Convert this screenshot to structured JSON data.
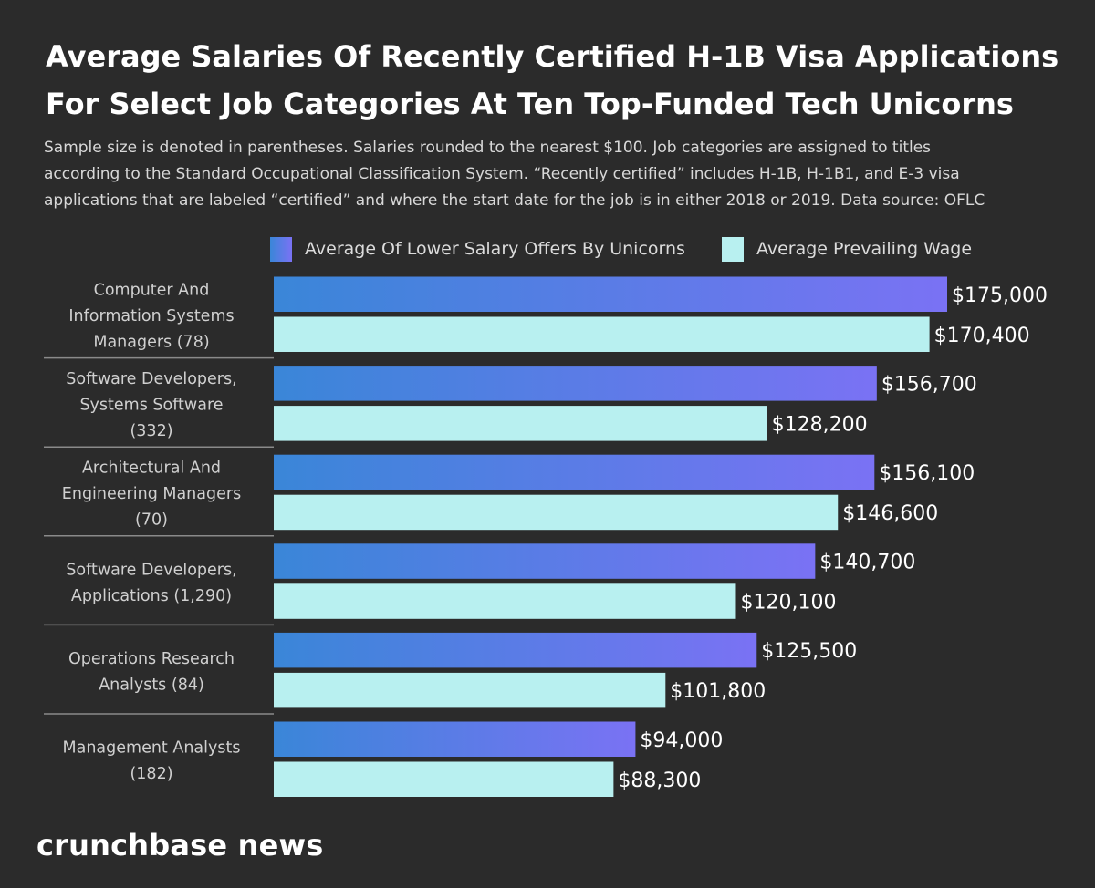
{
  "header": {
    "title_lines": [
      "Average Salaries Of Recently Certified H-1B Visa Applications",
      "For Select Job Categories At Ten Top-Funded Tech Unicorns"
    ],
    "subtitle_lines": [
      "Sample size is denoted in parentheses. Salaries rounded to the nearest $100. Job categories are assigned to titles",
      "according to the Standard Occupational Classification System. “Recently certified” includes H-1B, H-1B1, and E-3 visa",
      "applications that are labeled “certified” and where the start date for the job is in either 2018 or 2019. Data source: OFLC"
    ]
  },
  "legend": {
    "items": [
      "Average Of Lower Salary Offers By Unicorns",
      "Average Prevailing Wage"
    ]
  },
  "colors": {
    "background": "#2b2b2b",
    "series1_start": "#3a86d8",
    "series1_end": "#7a72f4",
    "series2": "#b8f0f0",
    "separator": "#8a8a8a",
    "label_text": "#d0d0d0",
    "value_text": "#ffffff"
  },
  "chart_data": {
    "type": "bar",
    "orientation": "horizontal",
    "categories": [
      [
        "Computer And",
        "Information Systems",
        "Managers (78)"
      ],
      [
        "Software Developers,",
        "Systems Software",
        "(332)"
      ],
      [
        "Architectural And",
        "Engineering Managers",
        "(70)"
      ],
      [
        "Software Developers,",
        "Applications (1,290)"
      ],
      [
        "Operations Research",
        "Analysts (84)"
      ],
      [
        "Management Analysts",
        "(182)"
      ]
    ],
    "series": [
      {
        "name": "Average Of Lower Salary Offers By Unicorns",
        "values": [
          175000,
          156700,
          156100,
          140700,
          125500,
          94000
        ],
        "labels": [
          "$175,000",
          "$156,700",
          "$156,100",
          "$140,700",
          "$125,500",
          "$94,000"
        ]
      },
      {
        "name": "Average Prevailing Wage",
        "values": [
          170400,
          128200,
          146600,
          120100,
          101800,
          88300
        ],
        "labels": [
          "$170,400",
          "$128,200",
          "$146,600",
          "$120,100",
          "$101,800",
          "$88,300"
        ]
      }
    ],
    "xlim": [
      0,
      175000
    ],
    "grid": false,
    "legend_position": "top"
  },
  "brand": {
    "text": "crunchbase news"
  }
}
